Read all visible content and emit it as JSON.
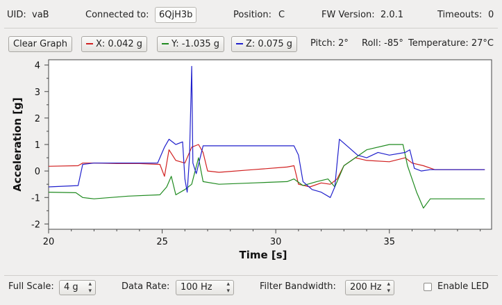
{
  "info": {
    "uid_label": "UID:",
    "uid_value": "vaB",
    "connected_label": "Connected to:",
    "connected_value": "6QjH3b",
    "position_label": "Position:",
    "position_value": "C",
    "fw_label": "FW Version:",
    "fw_value": "2.0.1",
    "timeouts_label": "Timeouts:",
    "timeouts_value": "0"
  },
  "toolbar": {
    "clear_label": "Clear Graph",
    "x_label": "X: 0.042 g",
    "y_label": "Y: -1.035 g",
    "z_label": "Z: 0.075 g",
    "pitch": "Pitch: 2°",
    "roll": "Roll: -85°",
    "temperature": "Temperature: 27°C"
  },
  "colors": {
    "x": "#d11f1f",
    "y": "#1f8a1f",
    "z": "#1f1fcc"
  },
  "chart_data": {
    "type": "line",
    "xlabel": "Time [s]",
    "ylabel": "Acceleration [g]",
    "xlim": [
      20,
      39.5
    ],
    "ylim": [
      -2.2,
      4.2
    ],
    "xticks": [
      20,
      25,
      30,
      35
    ],
    "yticks": [
      -2,
      -1,
      0,
      1,
      2,
      3,
      4
    ],
    "grid": false,
    "series": [
      {
        "key": "x",
        "points": [
          [
            20.0,
            0.18
          ],
          [
            21.3,
            0.2
          ],
          [
            21.5,
            0.3
          ],
          [
            22.0,
            0.3
          ],
          [
            23.0,
            0.28
          ],
          [
            24.0,
            0.28
          ],
          [
            24.9,
            0.25
          ],
          [
            25.1,
            -0.2
          ],
          [
            25.3,
            0.8
          ],
          [
            25.6,
            0.4
          ],
          [
            26.0,
            0.3
          ],
          [
            26.3,
            0.9
          ],
          [
            26.6,
            1.0
          ],
          [
            26.8,
            0.7
          ],
          [
            27.0,
            0.0
          ],
          [
            27.5,
            -0.05
          ],
          [
            29.0,
            0.05
          ],
          [
            30.5,
            0.15
          ],
          [
            30.8,
            0.2
          ],
          [
            31.0,
            -0.5
          ],
          [
            31.5,
            -0.6
          ],
          [
            32.0,
            -0.45
          ],
          [
            32.4,
            -0.5
          ],
          [
            32.7,
            -0.3
          ],
          [
            33.0,
            0.2
          ],
          [
            33.5,
            0.5
          ],
          [
            34.0,
            0.4
          ],
          [
            35.0,
            0.35
          ],
          [
            35.7,
            0.5
          ],
          [
            36.0,
            0.3
          ],
          [
            36.5,
            0.2
          ],
          [
            37.0,
            0.05
          ],
          [
            39.2,
            0.05
          ]
        ]
      },
      {
        "key": "y",
        "points": [
          [
            20.0,
            -0.8
          ],
          [
            21.2,
            -0.82
          ],
          [
            21.5,
            -1.0
          ],
          [
            22.0,
            -1.05
          ],
          [
            23.5,
            -0.95
          ],
          [
            24.9,
            -0.9
          ],
          [
            25.2,
            -0.6
          ],
          [
            25.4,
            -0.2
          ],
          [
            25.6,
            -0.9
          ],
          [
            26.0,
            -0.7
          ],
          [
            26.3,
            -0.5
          ],
          [
            26.6,
            0.5
          ],
          [
            26.8,
            -0.4
          ],
          [
            27.5,
            -0.5
          ],
          [
            29.0,
            -0.45
          ],
          [
            30.5,
            -0.4
          ],
          [
            30.8,
            -0.3
          ],
          [
            31.2,
            -0.55
          ],
          [
            31.8,
            -0.4
          ],
          [
            32.3,
            -0.3
          ],
          [
            32.6,
            -0.6
          ],
          [
            32.8,
            -0.2
          ],
          [
            33.0,
            0.2
          ],
          [
            33.5,
            0.5
          ],
          [
            34.0,
            0.8
          ],
          [
            35.0,
            1.0
          ],
          [
            35.6,
            1.0
          ],
          [
            35.8,
            0.2
          ],
          [
            36.2,
            -0.8
          ],
          [
            36.5,
            -1.4
          ],
          [
            36.8,
            -1.05
          ],
          [
            39.2,
            -1.05
          ]
        ]
      },
      {
        "key": "z",
        "points": [
          [
            20.0,
            -0.6
          ],
          [
            21.3,
            -0.55
          ],
          [
            21.5,
            0.25
          ],
          [
            22.0,
            0.3
          ],
          [
            23.5,
            0.3
          ],
          [
            24.8,
            0.3
          ],
          [
            25.1,
            0.9
          ],
          [
            25.3,
            1.2
          ],
          [
            25.6,
            1.0
          ],
          [
            25.9,
            1.1
          ],
          [
            26.0,
            -0.3
          ],
          [
            26.1,
            -0.8
          ],
          [
            26.2,
            0.5
          ],
          [
            26.3,
            3.95
          ],
          [
            26.35,
            0.3
          ],
          [
            26.5,
            -0.1
          ],
          [
            26.7,
            0.6
          ],
          [
            26.8,
            0.95
          ],
          [
            27.0,
            0.95
          ],
          [
            30.8,
            0.95
          ],
          [
            31.0,
            0.6
          ],
          [
            31.2,
            -0.4
          ],
          [
            31.6,
            -0.7
          ],
          [
            32.0,
            -0.8
          ],
          [
            32.4,
            -1.0
          ],
          [
            32.6,
            -0.6
          ],
          [
            32.8,
            1.2
          ],
          [
            33.2,
            0.9
          ],
          [
            33.6,
            0.6
          ],
          [
            34.0,
            0.5
          ],
          [
            34.5,
            0.7
          ],
          [
            35.0,
            0.6
          ],
          [
            35.7,
            0.7
          ],
          [
            35.9,
            0.8
          ],
          [
            36.1,
            0.1
          ],
          [
            36.4,
            0.0
          ],
          [
            36.8,
            0.05
          ],
          [
            39.2,
            0.05
          ]
        ]
      }
    ]
  },
  "controls": {
    "full_scale_label": "Full Scale:",
    "full_scale_value": "4 g",
    "data_rate_label": "Data Rate:",
    "data_rate_value": "100 Hz",
    "filter_label": "Filter Bandwidth:",
    "filter_value": "200 Hz",
    "led_label": "Enable LED",
    "led_checked": false
  }
}
